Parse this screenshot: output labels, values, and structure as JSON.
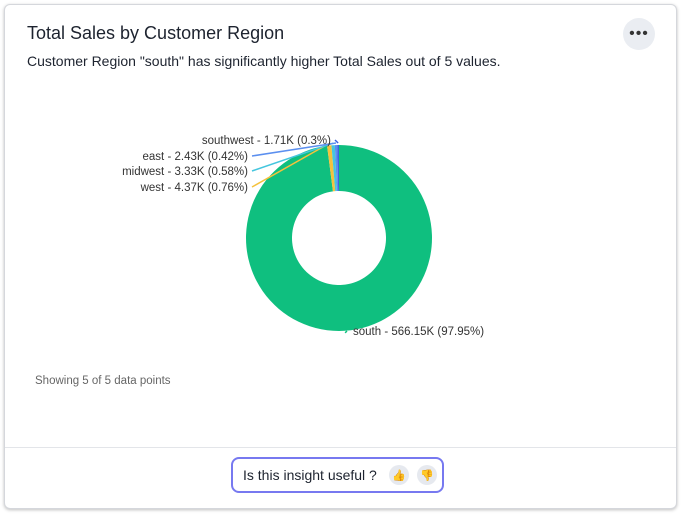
{
  "header": {
    "title": "Total Sales by Customer Region",
    "subtitle": "Customer Region \"south\" has significantly higher Total Sales out of 5 values.",
    "more_icon": "more-horizontal-icon"
  },
  "chart_data": {
    "type": "pie",
    "donut": true,
    "series": [
      {
        "name": "south",
        "value": 566.15,
        "label": "south - 566.15K (97.95%)",
        "color": "#0fbf7f"
      },
      {
        "name": "west",
        "value": 4.37,
        "label": "west - 4.37K (0.76%)",
        "color": "#f4c23d"
      },
      {
        "name": "midwest",
        "value": 3.33,
        "label": "midwest - 3.33K (0.58%)",
        "color": "#45c6de"
      },
      {
        "name": "east",
        "value": 2.43,
        "label": "east - 2.43K (0.42%)",
        "color": "#5b8fef"
      },
      {
        "name": "southwest",
        "value": 1.71,
        "label": "southwest - 1.71K (0.3%)",
        "color": "#3c62e0"
      }
    ]
  },
  "footer": {
    "showing": "Showing 5 of 5 data points",
    "feedback_question": "Is this insight useful ?",
    "thumbs_up_icon": "thumbs-up-icon",
    "thumbs_down_icon": "thumbs-down-icon"
  }
}
